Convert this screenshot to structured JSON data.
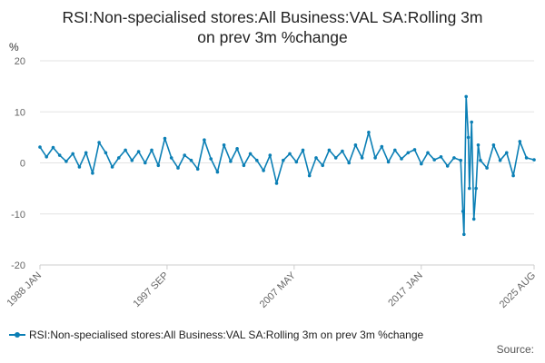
{
  "title_lines": [
    "RSI:Non-specialised stores:All Business:VAL SA:Rolling 3m",
    "on prev 3m %change"
  ],
  "source": "Source:",
  "colors": {
    "series": "#0b7fb5",
    "grid": "#e3e3e3",
    "axis": "#cccccc"
  },
  "chart_data": {
    "type": "line",
    "title": "RSI:Non-specialised stores:All Business:VAL SA:Rolling 3m on prev 3m %change",
    "ylabel": "%",
    "xlabel": "",
    "ylim": [
      -20,
      20
    ],
    "yticks": [
      20,
      10,
      0,
      -10,
      -20
    ],
    "xticks": [
      "1988 JAN",
      "1997 SEP",
      "2007 MAY",
      "2017 JAN",
      "2025 AUG"
    ],
    "grid": true,
    "legend": "bottom-left",
    "series": [
      {
        "name": "RSI:Non-specialised stores:All Business:VAL SA:Rolling 3m on prev 3m %change",
        "points": [
          [
            "1988-01",
            3.1
          ],
          [
            "1988-07",
            1.2
          ],
          [
            "1989-01",
            3.0
          ],
          [
            "1989-07",
            1.5
          ],
          [
            "1990-01",
            0.3
          ],
          [
            "1990-07",
            1.8
          ],
          [
            "1991-01",
            -0.8
          ],
          [
            "1991-07",
            2.0
          ],
          [
            "1992-01",
            -2.0
          ],
          [
            "1992-07",
            4.0
          ],
          [
            "1993-01",
            2.0
          ],
          [
            "1993-07",
            -0.8
          ],
          [
            "1994-01",
            1.0
          ],
          [
            "1994-07",
            2.5
          ],
          [
            "1995-01",
            0.5
          ],
          [
            "1995-07",
            2.2
          ],
          [
            "1996-01",
            0.0
          ],
          [
            "1996-07",
            2.5
          ],
          [
            "1997-01",
            -0.5
          ],
          [
            "1997-07",
            4.8
          ],
          [
            "1998-01",
            1.0
          ],
          [
            "1998-07",
            -1.0
          ],
          [
            "1999-01",
            1.5
          ],
          [
            "1999-07",
            0.5
          ],
          [
            "2000-01",
            -1.2
          ],
          [
            "2000-07",
            4.5
          ],
          [
            "2001-01",
            0.8
          ],
          [
            "2001-07",
            -1.8
          ],
          [
            "2002-01",
            3.5
          ],
          [
            "2002-07",
            0.3
          ],
          [
            "2003-01",
            2.8
          ],
          [
            "2003-07",
            -0.5
          ],
          [
            "2004-01",
            1.8
          ],
          [
            "2004-07",
            0.5
          ],
          [
            "2005-01",
            -1.5
          ],
          [
            "2005-07",
            1.5
          ],
          [
            "2006-01",
            -4.0
          ],
          [
            "2006-07",
            0.5
          ],
          [
            "2007-01",
            1.8
          ],
          [
            "2007-07",
            0.2
          ],
          [
            "2008-01",
            2.5
          ],
          [
            "2008-07",
            -2.5
          ],
          [
            "2009-01",
            1.0
          ],
          [
            "2009-07",
            -0.5
          ],
          [
            "2010-01",
            2.5
          ],
          [
            "2010-07",
            1.0
          ],
          [
            "2011-01",
            2.3
          ],
          [
            "2011-07",
            0.0
          ],
          [
            "2012-01",
            3.5
          ],
          [
            "2012-07",
            1.0
          ],
          [
            "2013-01",
            6.0
          ],
          [
            "2013-07",
            1.0
          ],
          [
            "2014-01",
            3.2
          ],
          [
            "2014-07",
            0.2
          ],
          [
            "2015-01",
            2.5
          ],
          [
            "2015-07",
            0.8
          ],
          [
            "2016-01",
            2.0
          ],
          [
            "2016-07",
            2.6
          ],
          [
            "2017-01",
            -0.2
          ],
          [
            "2017-07",
            2.0
          ],
          [
            "2018-01",
            0.6
          ],
          [
            "2018-07",
            1.2
          ],
          [
            "2019-01",
            -0.6
          ],
          [
            "2019-07",
            1.0
          ],
          [
            "2020-01",
            0.5
          ],
          [
            "2020-03",
            -9.5
          ],
          [
            "2020-04",
            -14.0
          ],
          [
            "2020-06",
            13.0
          ],
          [
            "2020-08",
            5.0
          ],
          [
            "2020-09",
            -5.0
          ],
          [
            "2020-11",
            8.0
          ],
          [
            "2021-01",
            -11.0
          ],
          [
            "2021-03",
            -5.0
          ],
          [
            "2021-05",
            3.5
          ],
          [
            "2021-07",
            0.5
          ],
          [
            "2022-01",
            -1.0
          ],
          [
            "2022-07",
            3.5
          ],
          [
            "2023-01",
            0.5
          ],
          [
            "2023-07",
            2.0
          ],
          [
            "2024-01",
            -2.5
          ],
          [
            "2024-07",
            4.2
          ],
          [
            "2025-01",
            1.0
          ],
          [
            "2025-08",
            0.6
          ]
        ]
      }
    ]
  }
}
